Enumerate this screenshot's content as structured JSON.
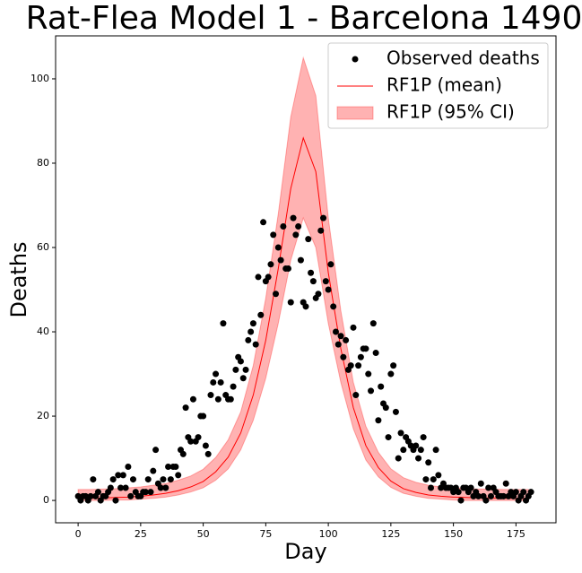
{
  "chart_data": {
    "type": "scatter",
    "title": "Rat-Flea Model 1 - Barcelona 1490",
    "x_label": "Day",
    "y_label": "Deaths",
    "xlim": [
      -9,
      191
    ],
    "ylim": [
      -5.3,
      110.2
    ],
    "xticks": [
      0,
      25,
      50,
      75,
      100,
      125,
      150,
      175
    ],
    "yticks": [
      0,
      20,
      40,
      60,
      80,
      100
    ],
    "legend_position": "upper right",
    "series": [
      {
        "name": "Observed deaths",
        "type": "scatter",
        "color": "#000000",
        "x": [
          0,
          1,
          2,
          3,
          4,
          5,
          6,
          7,
          8,
          9,
          10,
          11,
          12,
          13,
          14,
          15,
          16,
          17,
          18,
          19,
          20,
          21,
          22,
          23,
          24,
          25,
          26,
          27,
          28,
          29,
          30,
          31,
          32,
          33,
          34,
          35,
          36,
          37,
          38,
          39,
          40,
          41,
          42,
          43,
          44,
          45,
          46,
          47,
          48,
          49,
          50,
          51,
          52,
          53,
          54,
          55,
          56,
          57,
          58,
          59,
          60,
          61,
          62,
          63,
          64,
          65,
          66,
          67,
          68,
          69,
          70,
          71,
          72,
          73,
          74,
          75,
          76,
          77,
          78,
          79,
          80,
          81,
          82,
          83,
          84,
          85,
          86,
          87,
          88,
          89,
          90,
          91,
          92,
          93,
          94,
          95,
          96,
          97,
          98,
          99,
          100,
          101,
          102,
          103,
          104,
          105,
          106,
          107,
          108,
          109,
          110,
          111,
          112,
          113,
          114,
          115,
          116,
          117,
          118,
          119,
          120,
          121,
          122,
          123,
          124,
          125,
          126,
          127,
          128,
          129,
          130,
          131,
          132,
          133,
          134,
          135,
          136,
          137,
          138,
          139,
          140,
          141,
          142,
          143,
          144,
          145,
          146,
          147,
          148,
          149,
          150,
          151,
          152,
          153,
          154,
          155,
          156,
          157,
          158,
          159,
          160,
          161,
          162,
          163,
          164,
          165,
          166,
          167,
          168,
          169,
          170,
          171,
          172,
          173,
          174,
          175,
          176,
          177,
          178,
          179,
          180,
          181
        ],
        "values": [
          1,
          0,
          1,
          1,
          0,
          1,
          5,
          1,
          2,
          0,
          1,
          1,
          2,
          3,
          5,
          0,
          6,
          3,
          6,
          3,
          8,
          1,
          5,
          2,
          1,
          1,
          2,
          2,
          5,
          2,
          7,
          12,
          4,
          3,
          5,
          3,
          8,
          5,
          8,
          8,
          6,
          12,
          11,
          22,
          15,
          14,
          24,
          14,
          15,
          20,
          20,
          13,
          11,
          25,
          28,
          30,
          24,
          28,
          42,
          25,
          24,
          24,
          27,
          31,
          34,
          33,
          29,
          31,
          38,
          40,
          42,
          37,
          53,
          44,
          66,
          52,
          53,
          56,
          63,
          49,
          60,
          57,
          65,
          55,
          55,
          47,
          67,
          63,
          65,
          57,
          47,
          46,
          62,
          54,
          52,
          48,
          49,
          64,
          67,
          52,
          50,
          56,
          46,
          40,
          37,
          39,
          34,
          38,
          31,
          32,
          41,
          25,
          32,
          34,
          36,
          36,
          30,
          26,
          42,
          35,
          19,
          27,
          23,
          22,
          15,
          30,
          32,
          21,
          10,
          16,
          12,
          15,
          14,
          13,
          12,
          13,
          10,
          12,
          15,
          5,
          9,
          3,
          5,
          12,
          6,
          3,
          4,
          3,
          3,
          3,
          2,
          3,
          2,
          0,
          3,
          3,
          2,
          3,
          1,
          2,
          1,
          4,
          1,
          0,
          3,
          1,
          3,
          2,
          1,
          1,
          1,
          4,
          1,
          2,
          1,
          2,
          0,
          1,
          2,
          0,
          1,
          2
        ]
      },
      {
        "name": "RF1P (mean)",
        "type": "line",
        "color": "#ff0000",
        "x": [
          0,
          5,
          10,
          15,
          20,
          25,
          30,
          35,
          40,
          45,
          50,
          55,
          60,
          65,
          70,
          75,
          80,
          85,
          90,
          95,
          100,
          105,
          110,
          115,
          120,
          125,
          130,
          135,
          140,
          145,
          150,
          155,
          160,
          165,
          170,
          175,
          180
        ],
        "values": [
          0.5,
          0.5,
          0.6,
          0.7,
          0.8,
          1.0,
          1.3,
          1.7,
          2.3,
          3.2,
          4.5,
          6.8,
          10.3,
          16,
          25,
          38,
          55,
          74,
          86,
          78,
          54,
          36,
          22,
          13,
          7.8,
          4.6,
          2.8,
          1.9,
          1.3,
          1,
          0.8,
          0.7,
          0.6,
          0.6,
          0.5,
          0.5,
          0.5
        ]
      },
      {
        "name": "RF1P (95% CI)",
        "type": "band",
        "color": "#ff0000",
        "x": [
          0,
          5,
          10,
          15,
          20,
          25,
          30,
          35,
          40,
          45,
          50,
          55,
          60,
          65,
          70,
          75,
          80,
          85,
          90,
          95,
          100,
          105,
          110,
          115,
          120,
          125,
          130,
          135,
          140,
          145,
          150,
          155,
          160,
          165,
          170,
          175,
          180
        ],
        "lower": [
          0,
          0,
          0,
          0.1,
          0.1,
          0.3,
          0.5,
          0.8,
          1.3,
          2.0,
          3.0,
          4.8,
          7.5,
          12,
          19,
          29,
          42,
          57,
          67,
          60,
          42,
          28,
          17,
          9.6,
          5.6,
          3.1,
          1.7,
          1.0,
          0.5,
          0.3,
          0.1,
          0,
          0,
          0,
          0,
          0,
          0
        ],
        "upper": [
          2.6,
          2.6,
          2.7,
          2.8,
          3.0,
          3.2,
          3.6,
          4.0,
          4.8,
          5.8,
          7.4,
          10.2,
          14.4,
          21,
          32,
          48,
          68,
          91,
          105,
          96,
          67,
          45,
          28,
          17.6,
          11.4,
          7.5,
          5.4,
          4.3,
          3.6,
          3.2,
          3,
          2.8,
          2.7,
          2.7,
          2.6,
          2.6,
          2.6
        ]
      }
    ]
  }
}
